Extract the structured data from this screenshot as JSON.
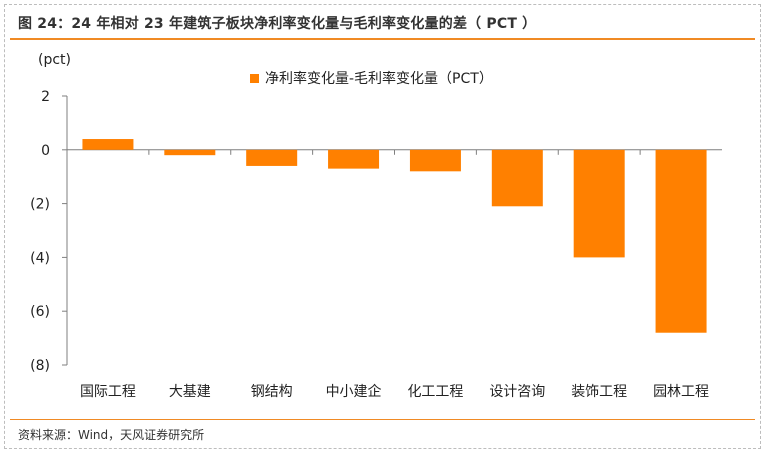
{
  "header": {
    "title": "图 24：24 年相对 23 年建筑子板块净利率变化量与毛利率变化量的差（ PCT ）"
  },
  "footer": {
    "source": "资料来源：Wind，天风证券研究所"
  },
  "colors": {
    "accent": "#f08a24",
    "bar": "#ff8000"
  },
  "chart_data": {
    "type": "bar",
    "title": "",
    "ylabel": "(pct)",
    "xlabel": "",
    "categories": [
      "国际工程",
      "大基建",
      "钢结构",
      "中小建企",
      "化工工程",
      "设计咨询",
      "装饰工程",
      "园林工程"
    ],
    "series": [
      {
        "name": "净利率变化量-毛利率变化量（PCT）",
        "values": [
          0.4,
          -0.2,
          -0.6,
          -0.7,
          -0.8,
          -2.1,
          -4.0,
          -6.8
        ]
      }
    ],
    "ylim": [
      -8,
      2
    ],
    "yticks": [
      2,
      0,
      -2,
      -4,
      -6,
      -8
    ],
    "ytick_labels": [
      "2",
      "0",
      "(2)",
      "(4)",
      "(6)",
      "(8)"
    ],
    "grid": false,
    "legend_position": "top"
  }
}
